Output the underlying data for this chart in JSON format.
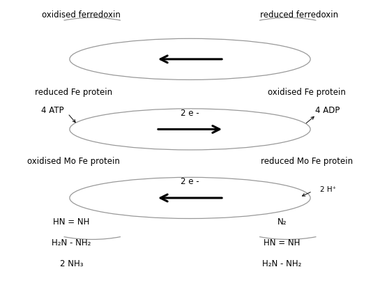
{
  "background_color": "#ffffff",
  "fig_width": 5.45,
  "fig_height": 4.16,
  "dpi": 100,
  "labels": {
    "oxidised_ferredoxin": "oxidised ferredoxin",
    "reduced_ferredoxin": "reduced ferredoxin",
    "reduced_fe_protein": "reduced Fe protein",
    "oxidised_fe_protein": "oxidised Fe protein",
    "4_atp": "4 ATP",
    "4_adp": "4 ADP",
    "2e_mid": "2 e -",
    "oxidised_mofe": "oxidised Mo Fe protein",
    "reduced_mofe": "reduced Mo Fe protein",
    "2e_bot": "2 e -",
    "2h_plus": "2 H⁺",
    "hn_nh_left": "HN = NH",
    "h2n_nh2_left": "H₂N - NH₂",
    "2nh3": "2 NH₃",
    "n2": "N₂",
    "hn_nh_right": "HN = NH",
    "h2n_nh2_right": "H₂N - NH₂"
  },
  "text_color": "#000000",
  "arrow_color": "#000000",
  "line_color": "#999999",
  "fontsize": 8.5,
  "small_fontsize": 7.5,
  "lw_oval": 0.9,
  "lw_arrow": 2.2
}
